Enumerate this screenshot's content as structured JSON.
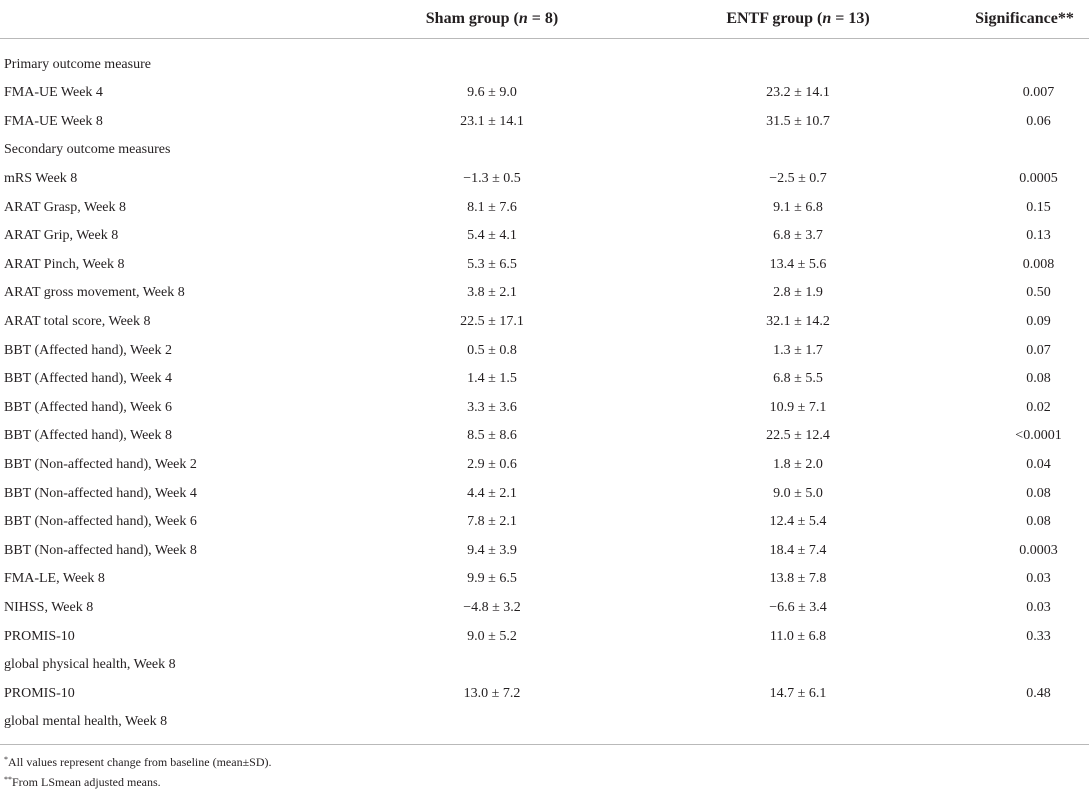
{
  "header": {
    "label": "",
    "sham": "Sham group (",
    "sham_n": "n",
    "sham_tail": " = 8)",
    "entf": "ENTF group (",
    "entf_n": "n",
    "entf_tail": " = 13)",
    "significance": "Significance**"
  },
  "rows": [
    {
      "label": "Primary outcome measure",
      "sham": "",
      "entf": "",
      "sig": ""
    },
    {
      "label": "FMA-UE Week 4",
      "sham": "9.6 ± 9.0",
      "entf": "23.2 ± 14.1",
      "sig": "0.007"
    },
    {
      "label": "FMA-UE Week 8",
      "sham": "23.1 ± 14.1",
      "entf": "31.5 ± 10.7",
      "sig": "0.06"
    },
    {
      "label": "Secondary outcome measures",
      "sham": "",
      "entf": "",
      "sig": ""
    },
    {
      "label": "mRS Week 8",
      "sham": "−1.3 ± 0.5",
      "entf": "−2.5 ± 0.7",
      "sig": "0.0005"
    },
    {
      "label": "ARAT Grasp, Week 8",
      "sham": "8.1 ± 7.6",
      "entf": "9.1 ± 6.8",
      "sig": "0.15"
    },
    {
      "label": "ARAT Grip, Week 8",
      "sham": "5.4 ± 4.1",
      "entf": "6.8 ± 3.7",
      "sig": "0.13"
    },
    {
      "label": "ARAT Pinch, Week 8",
      "sham": "5.3 ± 6.5",
      "entf": "13.4 ± 5.6",
      "sig": "0.008"
    },
    {
      "label": "ARAT gross movement, Week 8",
      "sham": "3.8 ± 2.1",
      "entf": "2.8 ± 1.9",
      "sig": "0.50"
    },
    {
      "label": "ARAT total score, Week 8",
      "sham": "22.5 ± 17.1",
      "entf": "32.1 ± 14.2",
      "sig": "0.09"
    },
    {
      "label": "BBT (Affected hand), Week 2",
      "sham": "0.5 ± 0.8",
      "entf": "1.3 ± 1.7",
      "sig": "0.07"
    },
    {
      "label": "BBT (Affected hand), Week 4",
      "sham": "1.4 ± 1.5",
      "entf": "6.8 ± 5.5",
      "sig": "0.08"
    },
    {
      "label": "BBT (Affected hand), Week 6",
      "sham": "3.3 ± 3.6",
      "entf": "10.9 ± 7.1",
      "sig": "0.02"
    },
    {
      "label": "BBT (Affected hand), Week 8",
      "sham": "8.5 ± 8.6",
      "entf": "22.5 ± 12.4",
      "sig": "<0.0001"
    },
    {
      "label": "BBT (Non-affected hand), Week 2",
      "sham": "2.9 ± 0.6",
      "entf": "1.8 ± 2.0",
      "sig": "0.04"
    },
    {
      "label": "BBT (Non-affected hand), Week 4",
      "sham": "4.4 ± 2.1",
      "entf": "9.0 ± 5.0",
      "sig": "0.08"
    },
    {
      "label": "BBT (Non-affected hand), Week 6",
      "sham": "7.8 ± 2.1",
      "entf": "12.4 ± 5.4",
      "sig": "0.08"
    },
    {
      "label": "BBT (Non-affected hand), Week 8",
      "sham": "9.4 ± 3.9",
      "entf": "18.4 ± 7.4",
      "sig": "0.0003"
    },
    {
      "label": "FMA-LE, Week 8",
      "sham": "9.9 ± 6.5",
      "entf": "13.8 ± 7.8",
      "sig": "0.03"
    },
    {
      "label": "NIHSS, Week 8",
      "sham": "−4.8 ± 3.2",
      "entf": "−6.6 ± 3.4",
      "sig": "0.03"
    },
    {
      "label": "PROMIS-10",
      "sham": "9.0 ± 5.2",
      "entf": "11.0 ± 6.8",
      "sig": "0.33"
    },
    {
      "label": "global physical health, Week 8",
      "sham": "",
      "entf": "",
      "sig": ""
    },
    {
      "label": "PROMIS-10",
      "sham": "13.0 ± 7.2",
      "entf": "14.7 ± 6.1",
      "sig": "0.48"
    },
    {
      "label": "global mental health, Week 8",
      "sham": "",
      "entf": "",
      "sig": ""
    }
  ],
  "footnotes": {
    "note1_mark": "*",
    "note1_text": "All values represent change from baseline (mean±SD).",
    "note2_mark": "**",
    "note2_text": "From LSmean adjusted means."
  }
}
